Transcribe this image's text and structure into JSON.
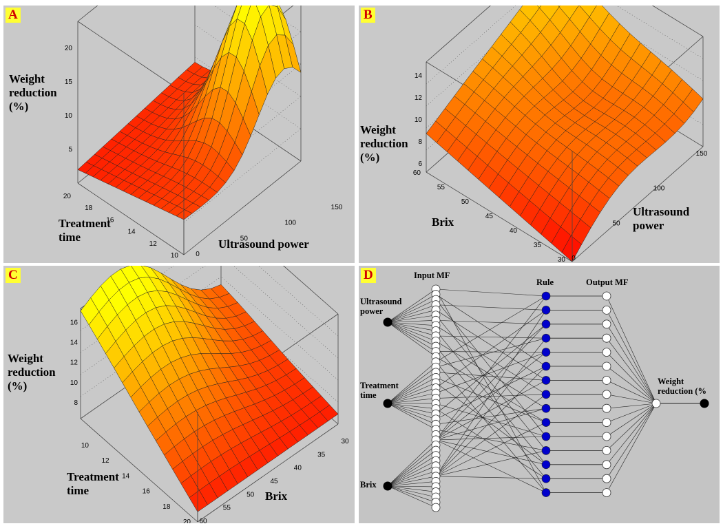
{
  "colors": {
    "panel_bg": "#c9c9c9",
    "tag_bg": "#ffff33",
    "tag_text": "#d10000",
    "rule_node": "#0000cc",
    "colormap": "autumn"
  },
  "chart_data": [
    {
      "type": "surface",
      "tag": "A",
      "zlabel": [
        "Weight",
        "reduction",
        "(%)"
      ],
      "xlabel": [
        "Ultrasound power"
      ],
      "ylabel": [
        "Treatment",
        "time"
      ],
      "x_ticks": [
        "0",
        "50",
        "100",
        "150"
      ],
      "y_ticks": [
        "10",
        "12",
        "14",
        "16",
        "18",
        "20"
      ],
      "z_ticks": [
        "5",
        "10",
        "15",
        "20"
      ],
      "xlim": [
        0,
        150
      ],
      "ylim": [
        10,
        20
      ],
      "zlim": [
        0,
        24
      ],
      "grid": true,
      "surface_summary": {
        "peak": 24,
        "peak_at": {
          "power": 110,
          "time": 18
        },
        "low": 2,
        "low_at": {
          "power": 0,
          "time": 10
        }
      }
    },
    {
      "type": "surface",
      "tag": "B",
      "zlabel": [
        "Weight",
        "reduction",
        "(%)"
      ],
      "xlabel": [
        "Ultrasound",
        "power"
      ],
      "ylabel": [
        "Brix"
      ],
      "x_ticks": [
        "0",
        "50",
        "100",
        "150"
      ],
      "y_ticks": [
        "30",
        "35",
        "40",
        "45",
        "50",
        "55",
        "60"
      ],
      "z_ticks": [
        "6",
        "8",
        "10",
        "12",
        "14"
      ],
      "xlim": [
        0,
        150
      ],
      "ylim": [
        30,
        60
      ],
      "zlim": [
        5,
        15
      ],
      "grid": true,
      "surface_summary": {
        "peak": 15,
        "peak_at": {
          "power": 150,
          "brix": 60
        },
        "low": 5,
        "low_at": {
          "power": 0,
          "brix": 30
        }
      }
    },
    {
      "type": "surface",
      "tag": "C",
      "zlabel": [
        "Weight",
        "reduction",
        "(%)"
      ],
      "xlabel": [
        "Brix"
      ],
      "ylabel": [
        "Treatment",
        "time"
      ],
      "x_ticks": [
        "30",
        "35",
        "40",
        "45",
        "50",
        "55",
        "60"
      ],
      "y_ticks": [
        "10",
        "12",
        "14",
        "16",
        "18",
        "20"
      ],
      "z_ticks": [
        "8",
        "10",
        "12",
        "14",
        "16"
      ],
      "xlim": [
        30,
        60
      ],
      "ylim": [
        10,
        20
      ],
      "zlim": [
        6,
        17
      ],
      "grid": true,
      "surface_summary": {
        "peak": 17,
        "peak_at": {
          "brix": 45,
          "time": 20
        },
        "low": 7,
        "low_at": {
          "brix": 60,
          "time": 10
        }
      }
    }
  ],
  "network": {
    "tag": "D",
    "headers": {
      "input_mf": "Input MF",
      "rule": "Rule",
      "output_mf": "Output MF"
    },
    "inputs": [
      {
        "label": [
          "Ultrasound",
          "power"
        ]
      },
      {
        "label": [
          "Treatment",
          "time"
        ]
      },
      {
        "label": [
          "Brix"
        ]
      }
    ],
    "output": {
      "label": [
        "Weight",
        "reduction (%"
      ]
    },
    "mf_per_input": 9,
    "rule_count": 15,
    "output_mf_count": 15
  }
}
